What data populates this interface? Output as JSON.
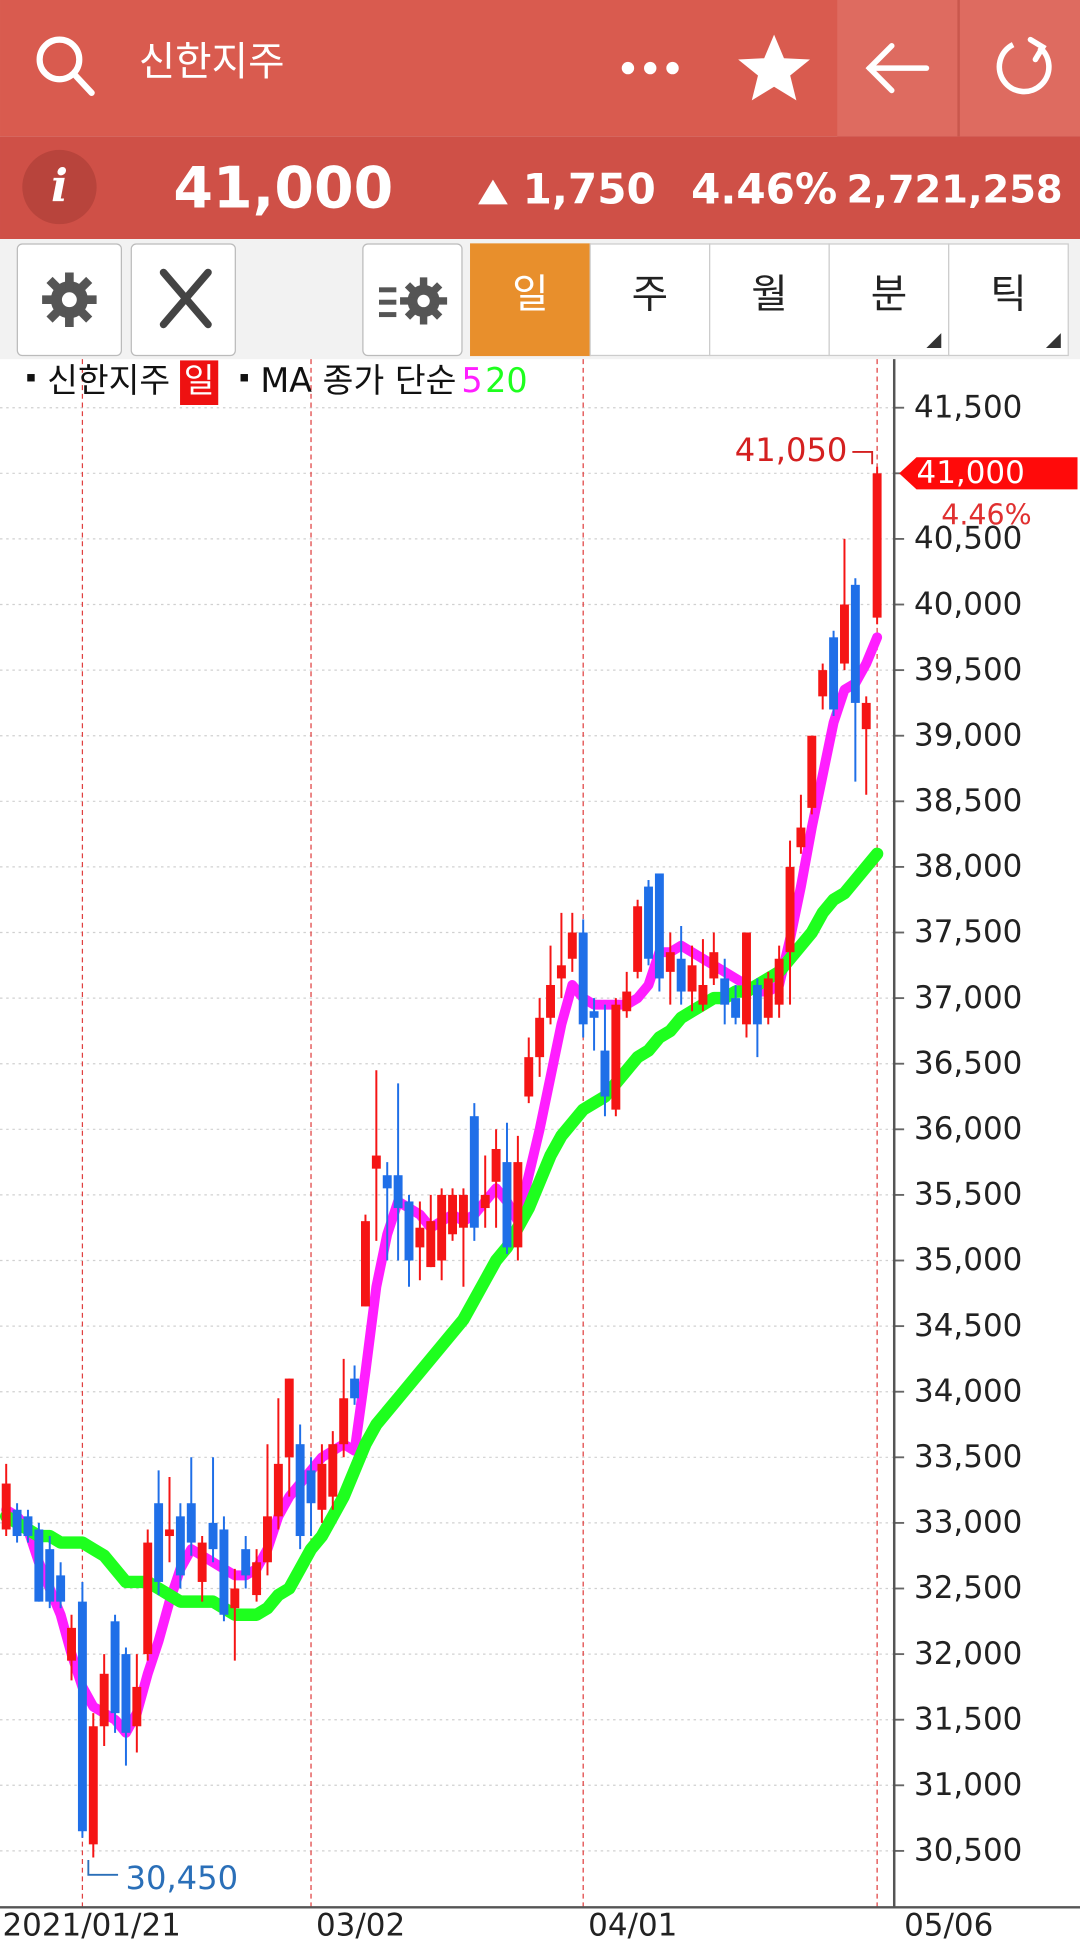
{
  "header": {
    "title": "신한지주",
    "price": "41,000",
    "change": "1,750",
    "change_pct": "4.46%",
    "volume": "2,721,258"
  },
  "toolbar": {
    "tabs": [
      "일",
      "주",
      "월",
      "분",
      "틱"
    ]
  },
  "chart_data": {
    "type": "candlestick",
    "title": "신한지주",
    "period": "일",
    "ma_label": "MA 종가 단순",
    "up_color": "#f51515",
    "down_color": "#1f6fe8",
    "categories": [
      null,
      null,
      null,
      null,
      null,
      null,
      null,
      "2021/01/21",
      null,
      null,
      null,
      null,
      null,
      null,
      null,
      null,
      null,
      null,
      null,
      null,
      null,
      null,
      null,
      null,
      null,
      null,
      null,
      null,
      "03/02",
      null,
      null,
      null,
      null,
      null,
      null,
      null,
      null,
      null,
      null,
      null,
      null,
      null,
      null,
      null,
      null,
      null,
      null,
      null,
      null,
      null,
      null,
      null,
      null,
      "04/01",
      null,
      null,
      null,
      null,
      null,
      null,
      null,
      null,
      null,
      null,
      null,
      null,
      null,
      null,
      null,
      null,
      null,
      null,
      null,
      null,
      null,
      null,
      null,
      null,
      null,
      null,
      "05/06"
    ],
    "open": [
      32950,
      33100,
      33050,
      32950,
      32800,
      32600,
      31950,
      32400,
      30550,
      31450,
      32250,
      32000,
      31450,
      32000,
      33150,
      32900,
      33050,
      33150,
      32550,
      33000,
      32950,
      32350,
      32800,
      32450,
      32700,
      33050,
      33500,
      33600,
      33400,
      33100,
      33200,
      33600,
      34100,
      34650,
      35700,
      35650,
      35650,
      35450,
      35100,
      34950,
      35000,
      35200,
      35250,
      36100,
      35400,
      35600,
      35750,
      35100,
      36250,
      36550,
      36850,
      37150,
      37300,
      37500,
      36900,
      36600,
      36150,
      36900,
      37200,
      37850,
      37950,
      37200,
      37300,
      37050,
      36950,
      37150,
      37150,
      37000,
      36800,
      37100,
      36850,
      36950,
      37350,
      38150,
      38450,
      39300,
      39750,
      39550,
      40150,
      39050,
      39900
    ],
    "high": [
      33450,
      33150,
      33100,
      33000,
      32900,
      32700,
      32300,
      32550,
      31550,
      32000,
      32300,
      32050,
      32000,
      32950,
      33400,
      33350,
      33150,
      33500,
      32900,
      33500,
      33050,
      32650,
      32900,
      32800,
      33600,
      33950,
      34100,
      33750,
      33500,
      33600,
      33700,
      34250,
      34200,
      35350,
      36450,
      35750,
      36350,
      35500,
      35450,
      35500,
      35550,
      35550,
      35550,
      36200,
      35800,
      36000,
      36050,
      35950,
      36700,
      37000,
      37400,
      37650,
      37650,
      37600,
      37000,
      36950,
      37000,
      37200,
      37750,
      37900,
      37950,
      37500,
      37550,
      37400,
      37450,
      37500,
      37300,
      37100,
      37500,
      37150,
      37200,
      37400,
      38200,
      38550,
      39000,
      39550,
      39800,
      40500,
      40200,
      39300,
      41050
    ],
    "low": [
      32900,
      32850,
      32850,
      32400,
      32350,
      32350,
      31800,
      30600,
      30450,
      31300,
      31400,
      31150,
      31250,
      31950,
      32450,
      32700,
      32500,
      32750,
      32400,
      32700,
      32250,
      31950,
      32500,
      32400,
      32600,
      32950,
      33200,
      32800,
      32900,
      33000,
      33100,
      33500,
      33900,
      34650,
      35150,
      35000,
      35000,
      34800,
      34850,
      34950,
      34850,
      35150,
      34800,
      35150,
      35250,
      35250,
      35050,
      35000,
      36200,
      36400,
      36800,
      37000,
      37200,
      36700,
      36600,
      36100,
      36100,
      36850,
      37150,
      37250,
      37050,
      36950,
      36950,
      36900,
      36900,
      37100,
      36800,
      36800,
      36700,
      36550,
      36800,
      36850,
      36950,
      38100,
      38400,
      39200,
      39150,
      39500,
      38650,
      38550,
      39850
    ],
    "close": [
      33300,
      32900,
      32900,
      32400,
      32400,
      32400,
      32200,
      30650,
      31450,
      31850,
      31550,
      31400,
      31750,
      32850,
      32550,
      32950,
      32600,
      32850,
      32850,
      32800,
      32300,
      32500,
      32600,
      32700,
      33050,
      33450,
      34100,
      32900,
      33150,
      33450,
      33600,
      33950,
      33950,
      35300,
      35800,
      35550,
      35400,
      35000,
      35250,
      35300,
      35500,
      35500,
      35500,
      35250,
      35500,
      35850,
      35100,
      35750,
      36550,
      36850,
      37100,
      37250,
      37500,
      36800,
      36850,
      36250,
      36950,
      37050,
      37700,
      37300,
      37150,
      37350,
      37050,
      37250,
      37100,
      37350,
      36950,
      36850,
      37500,
      36800,
      37150,
      37300,
      38000,
      38300,
      39000,
      39500,
      39200,
      40000,
      39250,
      39250,
      41000
    ],
    "lines": [
      {
        "name": "5",
        "color": "#ff1eff",
        "values": [
          33100,
          33050,
          32950,
          32700,
          32500,
          32300,
          32000,
          31750,
          31600,
          31550,
          31500,
          31400,
          31550,
          31850,
          32100,
          32400,
          32650,
          32800,
          32750,
          32700,
          32650,
          32600,
          32600,
          32650,
          32800,
          33050,
          33200,
          33300,
          33400,
          33500,
          33550,
          33600,
          33550,
          34150,
          34800,
          35200,
          35450,
          35400,
          35350,
          35250,
          35300,
          35350,
          35300,
          35350,
          35450,
          35550,
          35450,
          35300,
          35650,
          36000,
          36400,
          36800,
          37100,
          37000,
          36950,
          36950,
          36950,
          36950,
          37000,
          37100,
          37350,
          37350,
          37400,
          37350,
          37300,
          37250,
          37200,
          37150,
          37100,
          37050,
          37050,
          37100,
          37450,
          37850,
          38300,
          38700,
          39100,
          39350,
          39400,
          39550,
          39750
        ]
      },
      {
        "name": "20",
        "color": "#1eff1e",
        "values": [
          33050,
          33000,
          32950,
          32900,
          32900,
          32850,
          32850,
          32850,
          32800,
          32750,
          32650,
          32550,
          32550,
          32550,
          32500,
          32450,
          32400,
          32400,
          32400,
          32400,
          32350,
          32300,
          32300,
          32300,
          32350,
          32450,
          32500,
          32650,
          32800,
          32900,
          33050,
          33200,
          33400,
          33600,
          33750,
          33850,
          33950,
          34050,
          34150,
          34250,
          34350,
          34450,
          34550,
          34700,
          34850,
          35000,
          35100,
          35250,
          35400,
          35600,
          35800,
          35950,
          36050,
          36150,
          36200,
          36250,
          36350,
          36450,
          36550,
          36600,
          36700,
          36750,
          36850,
          36900,
          36950,
          37000,
          37000,
          37050,
          37050,
          37100,
          37150,
          37200,
          37300,
          37400,
          37500,
          37650,
          37750,
          37800,
          37900,
          38000,
          38100
        ]
      }
    ],
    "annotations": {
      "high": {
        "value": 41050,
        "label": "41,050"
      },
      "low": {
        "value": 30450,
        "label": "30,450"
      },
      "last": {
        "value": 41000,
        "label": "41,000"
      },
      "change": "4.46%"
    },
    "ylim": [
      30070,
      41870
    ],
    "yticks": [
      {
        "value": 30500,
        "label": "30,500"
      },
      {
        "value": 31000,
        "label": "31,000"
      },
      {
        "value": 31500,
        "label": "31,500"
      },
      {
        "value": 32000,
        "label": "32,000"
      },
      {
        "value": 32500,
        "label": "32,500"
      },
      {
        "value": 33000,
        "label": "33,000"
      },
      {
        "value": 33500,
        "label": "33,500"
      },
      {
        "value": 34000,
        "label": "34,000"
      },
      {
        "value": 34500,
        "label": "34,500"
      },
      {
        "value": 35000,
        "label": "35,000"
      },
      {
        "value": 35500,
        "label": "35,500"
      },
      {
        "value": 36000,
        "label": "36,000"
      },
      {
        "value": 36500,
        "label": "36,500"
      },
      {
        "value": 37000,
        "label": "37,000"
      },
      {
        "value": 37500,
        "label": "37,500"
      },
      {
        "value": 38000,
        "label": "38,000"
      },
      {
        "value": 38500,
        "label": "38,500"
      },
      {
        "value": 39000,
        "label": "39,000"
      },
      {
        "value": 39500,
        "label": "39,500"
      },
      {
        "value": 40000,
        "label": "40,000"
      },
      {
        "value": 40500,
        "label": "40,500"
      },
      {
        "value": 41000,
        "label": "41,000"
      },
      {
        "value": 41500,
        "label": "41,500"
      }
    ],
    "grid": true
  }
}
